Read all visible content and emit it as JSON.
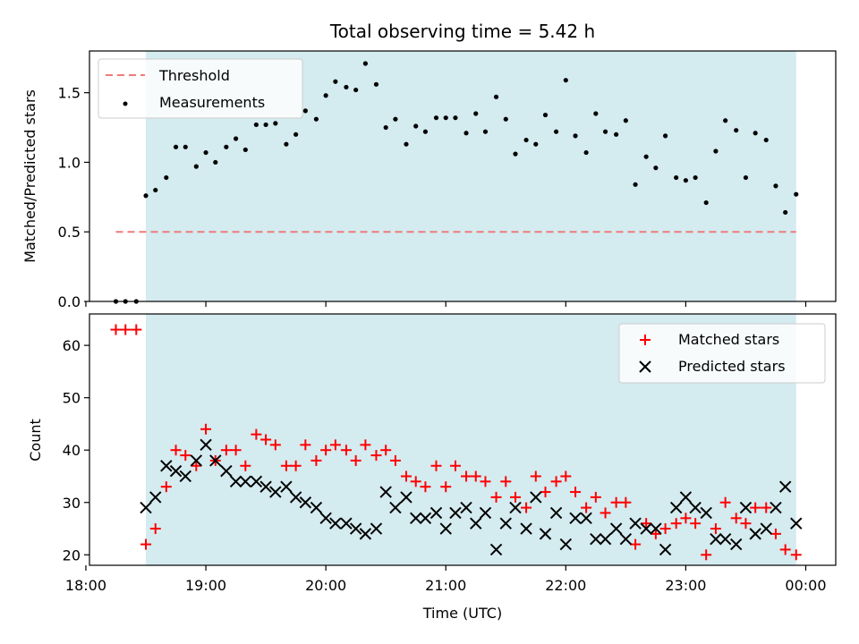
{
  "title": "Total observing time = 5.42 h",
  "colors": {
    "shade": "#d4ebf0",
    "threshold": "#f07a7a",
    "measurement": "#000000",
    "matched": "#ff0000",
    "predicted": "#000000"
  },
  "chart_data": [
    {
      "type": "scatter",
      "ylabel": "Matched/Predicted stars",
      "xlabel": "",
      "xlim": [
        18.03,
        24.25
      ],
      "ylim": [
        0.0,
        1.8
      ],
      "yticks": [
        0.0,
        0.5,
        1.0,
        1.5
      ],
      "ytick_labels": [
        "0.0",
        "0.5",
        "1.0",
        "1.5"
      ],
      "legend": {
        "placement": "upper-left",
        "threshold_label": "Threshold",
        "measurements_label": "Measurements"
      },
      "shaded_interval": [
        18.5,
        23.92
      ],
      "threshold": {
        "name": "Threshold",
        "y": 0.5,
        "x_range": [
          18.25,
          23.92
        ]
      },
      "series": [
        {
          "name": "Measurements",
          "x": [
            18.25,
            18.33,
            18.42,
            18.5,
            18.58,
            18.67,
            18.75,
            18.83,
            18.92,
            19.0,
            19.08,
            19.17,
            19.25,
            19.33,
            19.42,
            19.5,
            19.58,
            19.67,
            19.75,
            19.83,
            19.92,
            20.0,
            20.08,
            20.17,
            20.25,
            20.33,
            20.42,
            20.5,
            20.58,
            20.67,
            20.75,
            20.83,
            20.92,
            21.0,
            21.08,
            21.17,
            21.25,
            21.33,
            21.42,
            21.5,
            21.58,
            21.67,
            21.75,
            21.83,
            21.92,
            22.0,
            22.08,
            22.17,
            22.25,
            22.33,
            22.42,
            22.5,
            22.58,
            22.67,
            22.75,
            22.83,
            22.92,
            23.0,
            23.08,
            23.17,
            23.25,
            23.33,
            23.42,
            23.5,
            23.58,
            23.67,
            23.75,
            23.83,
            23.92
          ],
          "y": [
            0.0,
            0.0,
            0.0,
            0.76,
            0.8,
            0.89,
            1.11,
            1.11,
            0.97,
            1.07,
            1.0,
            1.11,
            1.17,
            1.09,
            1.27,
            1.27,
            1.28,
            1.13,
            1.2,
            1.37,
            1.31,
            1.48,
            1.58,
            1.54,
            1.52,
            1.71,
            1.56,
            1.25,
            1.31,
            1.13,
            1.26,
            1.22,
            1.32,
            1.32,
            1.32,
            1.21,
            1.35,
            1.22,
            1.47,
            1.31,
            1.06,
            1.16,
            1.13,
            1.34,
            1.22,
            1.59,
            1.19,
            1.07,
            1.35,
            1.22,
            1.2,
            1.3,
            0.84,
            1.04,
            0.96,
            1.19,
            0.89,
            0.87,
            0.89,
            0.71,
            1.08,
            1.3,
            1.23,
            0.89,
            1.21,
            1.16,
            0.83,
            0.64,
            0.77
          ]
        }
      ]
    },
    {
      "type": "scatter",
      "ylabel": "Count",
      "xlabel": "Time (UTC)",
      "xlim": [
        18.03,
        24.25
      ],
      "ylim": [
        18,
        66
      ],
      "yticks": [
        20,
        30,
        40,
        50,
        60
      ],
      "ytick_labels": [
        "20",
        "30",
        "40",
        "50",
        "60"
      ],
      "xticks": [
        18,
        19,
        20,
        21,
        22,
        23,
        24
      ],
      "xtick_labels": [
        "18:00",
        "19:00",
        "20:00",
        "21:00",
        "22:00",
        "23:00",
        "00:00"
      ],
      "legend": {
        "placement": "upper-right",
        "matched_label": "Matched stars",
        "predicted_label": "Predicted stars"
      },
      "shaded_interval": [
        18.5,
        23.92
      ],
      "series": [
        {
          "name": "Matched stars",
          "x": [
            18.25,
            18.33,
            18.42,
            18.5,
            18.58,
            18.67,
            18.75,
            18.83,
            18.92,
            19.0,
            19.08,
            19.17,
            19.25,
            19.33,
            19.42,
            19.5,
            19.58,
            19.67,
            19.75,
            19.83,
            19.92,
            20.0,
            20.08,
            20.17,
            20.25,
            20.33,
            20.42,
            20.5,
            20.58,
            20.67,
            20.75,
            20.83,
            20.92,
            21.0,
            21.08,
            21.17,
            21.25,
            21.33,
            21.42,
            21.5,
            21.58,
            21.67,
            21.75,
            21.83,
            21.92,
            22.0,
            22.08,
            22.17,
            22.25,
            22.33,
            22.42,
            22.5,
            22.58,
            22.67,
            22.75,
            22.83,
            22.92,
            23.0,
            23.08,
            23.17,
            23.25,
            23.33,
            23.42,
            23.5,
            23.58,
            23.67,
            23.75,
            23.83,
            23.92
          ],
          "y": [
            63,
            63,
            63,
            22,
            25,
            33,
            40,
            39,
            37,
            44,
            38,
            40,
            40,
            37,
            43,
            42,
            41,
            37,
            37,
            41,
            38,
            40,
            41,
            40,
            38,
            41,
            39,
            40,
            38,
            35,
            34,
            33,
            37,
            33,
            37,
            35,
            35,
            34,
            31,
            34,
            31,
            29,
            35,
            32,
            34,
            35,
            32,
            29,
            31,
            28,
            30,
            30,
            22,
            26,
            24,
            25,
            26,
            27,
            26,
            20,
            25,
            30,
            27,
            26,
            29,
            29,
            24,
            21,
            20
          ]
        },
        {
          "name": "Predicted stars",
          "x": [
            18.5,
            18.58,
            18.67,
            18.75,
            18.83,
            18.92,
            19.0,
            19.08,
            19.17,
            19.25,
            19.33,
            19.42,
            19.5,
            19.58,
            19.67,
            19.75,
            19.83,
            19.92,
            20.0,
            20.08,
            20.17,
            20.25,
            20.33,
            20.42,
            20.5,
            20.58,
            20.67,
            20.75,
            20.83,
            20.92,
            21.0,
            21.08,
            21.17,
            21.25,
            21.33,
            21.42,
            21.5,
            21.58,
            21.67,
            21.75,
            21.83,
            21.92,
            22.0,
            22.08,
            22.17,
            22.25,
            22.33,
            22.42,
            22.5,
            22.58,
            22.67,
            22.75,
            22.83,
            22.92,
            23.0,
            23.08,
            23.17,
            23.25,
            23.33,
            23.42,
            23.5,
            23.58,
            23.67,
            23.75,
            23.83,
            23.92
          ],
          "y": [
            29,
            31,
            37,
            36,
            35,
            38,
            41,
            38,
            36,
            34,
            34,
            34,
            33,
            32,
            33,
            31,
            30,
            29,
            27,
            26,
            26,
            25,
            24,
            25,
            32,
            29,
            31,
            27,
            27,
            28,
            25,
            28,
            29,
            26,
            28,
            21,
            26,
            29,
            25,
            31,
            24,
            28,
            22,
            27,
            27,
            23,
            23,
            25,
            23,
            26,
            25,
            25,
            21,
            29,
            31,
            29,
            28,
            23,
            23,
            22,
            29,
            24,
            25,
            29,
            33,
            26
          ]
        }
      ]
    }
  ]
}
